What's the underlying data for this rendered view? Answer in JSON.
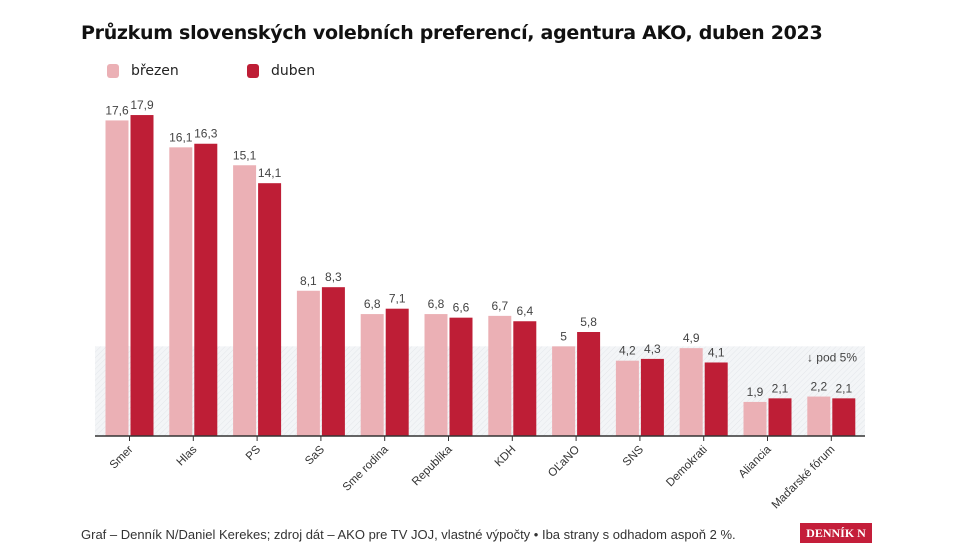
{
  "chart_data": {
    "type": "bar",
    "title": "Průzkum slovenských volebních preferencí, agentura AKO, duben 2023",
    "categories": [
      "Smer",
      "Hlas",
      "PS",
      "SaS",
      "Sme rodina",
      "Republika",
      "KDH",
      "OĽaNO",
      "SNS",
      "Demokrati",
      "Aliancia",
      "Maďarské fórum"
    ],
    "series": [
      {
        "name": "březen",
        "color": "#ebb0b5",
        "values": [
          17.6,
          16.1,
          15.1,
          8.1,
          6.8,
          6.8,
          6.7,
          5,
          4.2,
          4.9,
          1.9,
          2.2
        ],
        "labels": [
          "17,6",
          "16,1",
          "15,1",
          "8,1",
          "6,8",
          "6,8",
          "6,7",
          "5",
          "4,2",
          "4,9",
          "1,9",
          "2,2"
        ]
      },
      {
        "name": "duben",
        "color": "#be1e36",
        "values": [
          17.9,
          16.3,
          14.1,
          8.3,
          7.1,
          6.6,
          6.4,
          5.8,
          4.3,
          4.1,
          2.1,
          2.1
        ],
        "labels": [
          "17,9",
          "16,3",
          "14,1",
          "8,3",
          "7,1",
          "6,6",
          "6,4",
          "5,8",
          "4,3",
          "4,1",
          "2,1",
          "2,1"
        ]
      }
    ],
    "threshold": {
      "value": 5,
      "label": "↓ pod 5%"
    },
    "ylim": [
      0,
      18
    ],
    "grid": false,
    "legend": "top-left",
    "xlabel": "",
    "ylabel": ""
  },
  "footer": "Graf – Denník N/Daniel Kerekes; zdroj dát – AKO pre TV JOJ, vlastné výpočty • Iba strany s odhadom aspoň 2 %.",
  "logo": "DENNÍK N"
}
